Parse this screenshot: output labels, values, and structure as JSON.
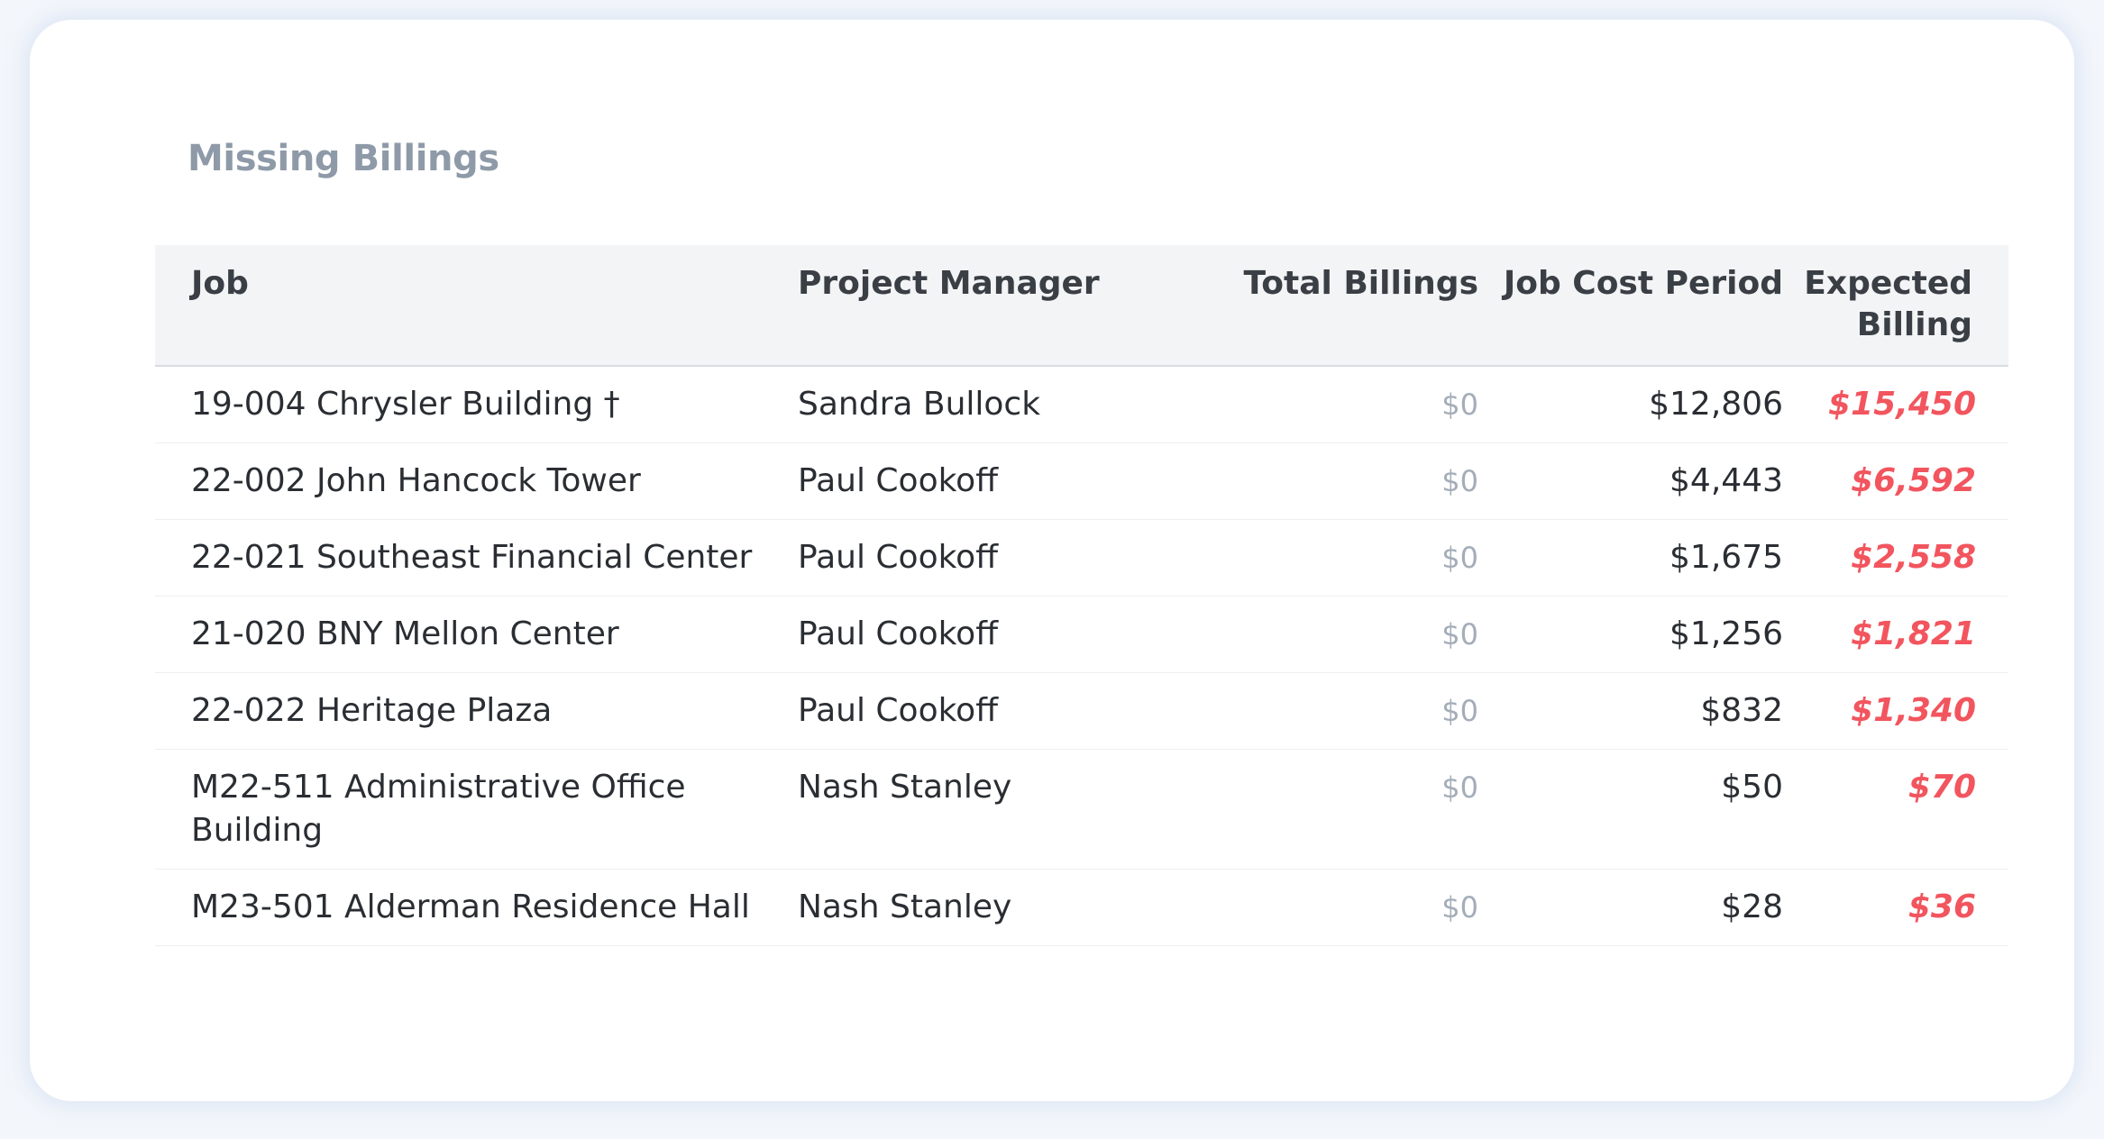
{
  "card": {
    "title": "Missing Billings"
  },
  "table": {
    "headers": {
      "job": "Job",
      "project_manager": "Project Manager",
      "total_billings": "Total Billings",
      "job_cost_period": "Job Cost Period",
      "expected_billing": "Expected Billing"
    },
    "rows": [
      {
        "job": "19-004 Chrysler Building †",
        "project_manager": "Sandra Bullock",
        "total_billings": "$0",
        "job_cost_period": "$12,806",
        "expected_billing": "$15,450"
      },
      {
        "job": "22-002 John Hancock Tower",
        "project_manager": "Paul Cookoff",
        "total_billings": "$0",
        "job_cost_period": "$4,443",
        "expected_billing": "$6,592"
      },
      {
        "job": "22-021 Southeast Financial Center",
        "project_manager": "Paul Cookoff",
        "total_billings": "$0",
        "job_cost_period": "$1,675",
        "expected_billing": "$2,558"
      },
      {
        "job": "21-020 BNY Mellon Center",
        "project_manager": "Paul Cookoff",
        "total_billings": "$0",
        "job_cost_period": "$1,256",
        "expected_billing": "$1,821"
      },
      {
        "job": "22-022 Heritage Plaza",
        "project_manager": "Paul Cookoff",
        "total_billings": "$0",
        "job_cost_period": "$832",
        "expected_billing": "$1,340"
      },
      {
        "job": "M22-511 Administrative Office Building",
        "project_manager": "Nash Stanley",
        "total_billings": "$0",
        "job_cost_period": "$50",
        "expected_billing": "$70"
      },
      {
        "job": "M23-501 Alderman Residence Hall",
        "project_manager": "Nash Stanley",
        "total_billings": "$0",
        "job_cost_period": "$28",
        "expected_billing": "$36"
      }
    ]
  },
  "colors": {
    "page_background": "#f3f6fb",
    "card_background": "#ffffff",
    "title": "#8e9aa8",
    "header_background": "#f3f4f6",
    "text": "#2a2e33",
    "muted_value": "#a4adb8",
    "expected_billing": "#f2555e"
  }
}
